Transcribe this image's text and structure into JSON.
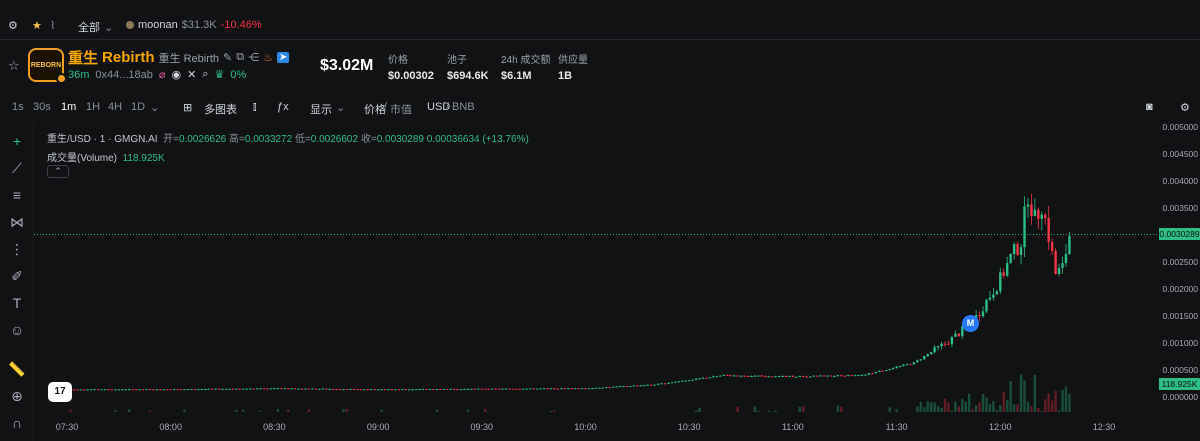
{
  "topbar": {
    "category": "全部",
    "ticker_name": "moonan",
    "ticker_mcap": "$31.3K",
    "ticker_change": "-10.46%"
  },
  "token": {
    "name_cn": "重生",
    "name_en": "Rebirth",
    "sub_name": "重生 Rebirth",
    "logo_text": "REBORN",
    "age": "36m",
    "address": "0x44...18ab",
    "holders_pct": "0%",
    "market_cap": "$3.02M",
    "stats": [
      {
        "label": "价格",
        "value": "$0.00302"
      },
      {
        "label": "池子",
        "value": "$694.6K"
      },
      {
        "label": "24h 成交额",
        "value": "$6.1M"
      },
      {
        "label": "供应量",
        "value": "1B"
      }
    ]
  },
  "toolbar": {
    "intervals": [
      "1s",
      "30s",
      "1m",
      "1H",
      "4H",
      "1D"
    ],
    "active_interval": "1m",
    "multi_chart": "多图表",
    "display": "显示",
    "price_label": "价格",
    "mcap_label": "市值",
    "usd": "USD",
    "bnb": "BNB"
  },
  "legend": {
    "symbol": "重生/USD · 1 · GMGN.AI",
    "open_label": "开=",
    "open": "0.0026626",
    "high_label": "高=",
    "high": "0.0033272",
    "low_label": "低=",
    "low": "0.0026602",
    "close_label": "收=",
    "close": "0.0030289",
    "change": "0.00036634 (+13.76%)",
    "volume_label": "成交量(Volume)",
    "volume": "118.925K"
  },
  "badges": {
    "m": "M",
    "tv": "17"
  },
  "chart_data": {
    "type": "candlestick",
    "yticks": [
      "0.005000",
      "0.004500",
      "0.004000",
      "0.003500",
      "0.003000",
      "0.002500",
      "0.002000",
      "0.001500",
      "0.001000",
      "0.000500",
      "0.000000"
    ],
    "ylim": [
      0,
      0.005
    ],
    "xticks": [
      "07:30",
      "08:00",
      "08:30",
      "09:00",
      "09:30",
      "10:00",
      "10:30",
      "11:00",
      "11:30",
      "12:00",
      "12:30"
    ],
    "last_price_label": "0.0030289",
    "last_volume_label": "118.925K",
    "price_path": [
      [
        "07:30",
        0.00016
      ],
      [
        "08:00",
        0.00016
      ],
      [
        "08:30",
        0.00018
      ],
      [
        "09:00",
        0.00016
      ],
      [
        "09:30",
        0.00017
      ],
      [
        "10:00",
        0.00018
      ],
      [
        "10:20",
        0.00025
      ],
      [
        "10:40",
        0.00042
      ],
      [
        "11:00",
        0.0004
      ],
      [
        "11:20",
        0.00042
      ],
      [
        "11:35",
        0.00065
      ],
      [
        "11:45",
        0.00105
      ],
      [
        "11:52",
        0.0014
      ],
      [
        "12:00",
        0.0022
      ],
      [
        "12:03",
        0.0026
      ],
      [
        "12:06",
        0.0029
      ],
      [
        "12:08",
        0.0038
      ],
      [
        "12:10",
        0.0033
      ],
      [
        "12:12",
        0.0036
      ],
      [
        "12:14",
        0.003
      ],
      [
        "12:16",
        0.0023
      ],
      [
        "12:18",
        0.0024
      ],
      [
        "12:20",
        0.00303
      ]
    ]
  },
  "colors": {
    "up": "#2ebd85",
    "down": "#f23645",
    "accent": "#f7a600",
    "bg": "#111214"
  }
}
